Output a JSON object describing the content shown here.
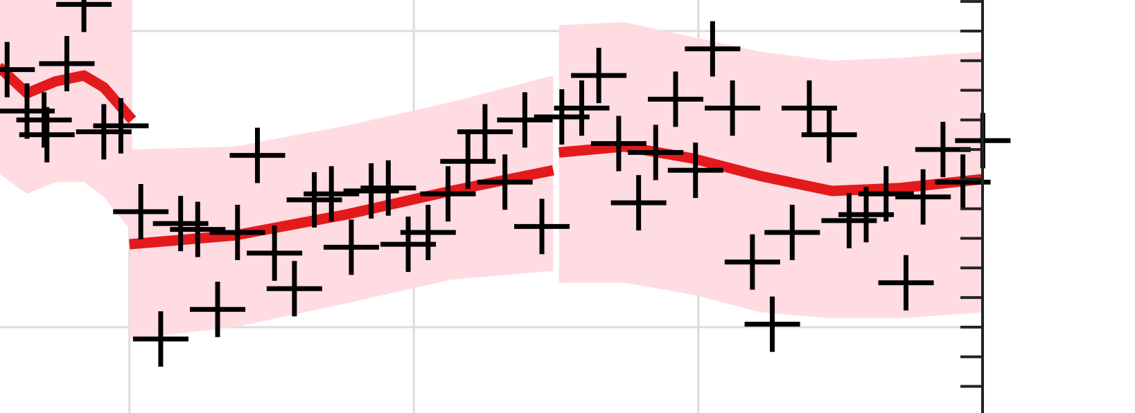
{
  "chart_data": {
    "type": "line",
    "xlim": [
      -0.455,
      3.535
    ],
    "ylim": [
      -0.29,
      1.105
    ],
    "xgrid": [
      0,
      1,
      2
    ],
    "ygrid": [
      0,
      1
    ],
    "yticks": [
      -0.2,
      -0.1,
      0,
      0.1,
      0.2,
      0.3,
      0.4,
      0.5,
      0.6,
      0.7,
      0.8,
      0.9,
      1,
      1.1
    ],
    "grid": true,
    "line_color": "#e31a1c",
    "band_color": "#ffd9e0",
    "marker_color": "#000000",
    "bands": [
      {
        "x": [
          -0.46,
          -0.36,
          -0.26,
          -0.16,
          -0.09,
          0.01
        ],
        "mean": [
          0.88,
          0.79,
          0.83,
          0.85,
          0.81,
          0.7
        ],
        "lower": [
          0.52,
          0.45,
          0.49,
          0.49,
          0.44,
          0.32
        ],
        "upper": [
          1.2,
          1.2,
          1.2,
          1.2,
          1.2,
          1.2
        ]
      },
      {
        "x": [
          0,
          0.37,
          0.76,
          1.13,
          1.49
        ],
        "mean": [
          0.28,
          0.31,
          0.38,
          0.46,
          0.53
        ],
        "lower": [
          -0.04,
          0.0,
          0.08,
          0.16,
          0.19
        ],
        "upper": [
          0.6,
          0.61,
          0.68,
          0.76,
          0.85
        ]
      },
      {
        "x": [
          1.51,
          1.74,
          1.98,
          2.22,
          2.47,
          2.71,
          3.0
        ],
        "mean": [
          0.59,
          0.61,
          0.57,
          0.51,
          0.46,
          0.47,
          0.5
        ],
        "lower": [
          0.15,
          0.15,
          0.11,
          0.05,
          0.03,
          0.03,
          0.05
        ],
        "upper": [
          1.02,
          1.03,
          0.98,
          0.93,
          0.9,
          0.91,
          0.93
        ]
      }
    ],
    "points": {
      "x": [
        -0.43,
        -0.22,
        -0.36,
        -0.3,
        -0.29,
        -0.09,
        -0.03,
        -0.16,
        0.04,
        0.18,
        0.24,
        0.38,
        0.45,
        0.51,
        0.58,
        0.11,
        0.31,
        0.65,
        0.71,
        0.78,
        0.85,
        0.91,
        0.98,
        1.05,
        1.12,
        1.19,
        1.25,
        1.32,
        1.39,
        1.45,
        1.52,
        1.59,
        1.65,
        1.72,
        1.85,
        1.92,
        1.99,
        1.79,
        2.05,
        2.12,
        2.19,
        2.26,
        2.33,
        2.39,
        2.46,
        2.53,
        2.59,
        2.66,
        2.73,
        2.79,
        2.86,
        2.93,
        3.0
      ],
      "y": [
        0.87,
        0.89,
        0.73,
        0.7,
        0.65,
        0.66,
        0.68,
        1.09,
        0.39,
        0.35,
        0.33,
        0.32,
        0.58,
        0.25,
        0.13,
        -0.04,
        0.06,
        0.43,
        0.45,
        0.27,
        0.46,
        0.47,
        0.28,
        0.32,
        0.45,
        0.56,
        0.66,
        0.49,
        0.7,
        0.34,
        0.71,
        0.74,
        0.85,
        0.62,
        0.59,
        0.77,
        0.53,
        0.42,
        0.94,
        0.74,
        0.22,
        0.01,
        0.32,
        0.74,
        0.65,
        0.36,
        0.38,
        0.45,
        0.15,
        0.44,
        0.6,
        0.49,
        0.63
      ]
    }
  }
}
